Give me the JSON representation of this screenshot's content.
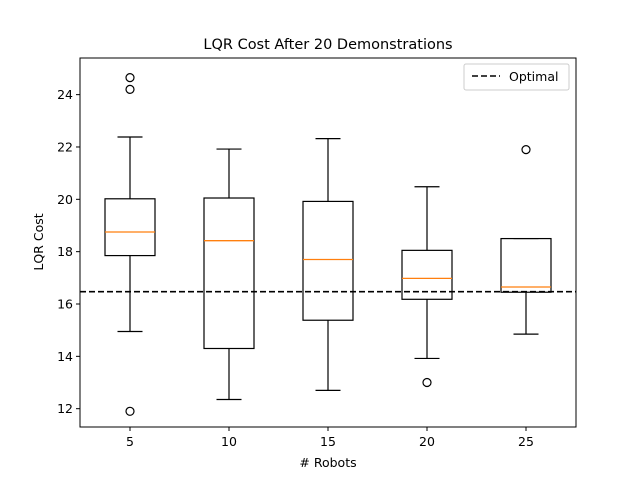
{
  "chart_data": {
    "type": "box",
    "title": "LQR Cost After 20 Demonstrations",
    "xlabel": "# Robots",
    "ylabel": "LQR Cost",
    "categories": [
      "5",
      "10",
      "15",
      "20",
      "25"
    ],
    "ylim": [
      11.3,
      25.4
    ],
    "yticks": [
      "12",
      "14",
      "16",
      "18",
      "20",
      "22",
      "24"
    ],
    "boxes": [
      {
        "category": "5",
        "whisker_low": 14.95,
        "q1": 17.85,
        "median": 18.75,
        "q3": 20.02,
        "whisker_high": 22.38,
        "outliers": [
          11.9,
          24.2,
          24.65
        ]
      },
      {
        "category": "10",
        "whisker_low": 12.35,
        "q1": 14.3,
        "median": 18.42,
        "q3": 20.05,
        "whisker_high": 21.92,
        "outliers": []
      },
      {
        "category": "15",
        "whisker_low": 12.7,
        "q1": 15.38,
        "median": 17.7,
        "q3": 19.92,
        "whisker_high": 22.32,
        "outliers": []
      },
      {
        "category": "20",
        "whisker_low": 13.92,
        "q1": 16.18,
        "median": 16.98,
        "q3": 18.05,
        "whisker_high": 20.48,
        "outliers": [
          13.0
        ]
      },
      {
        "category": "25",
        "whisker_low": 14.85,
        "q1": 16.45,
        "median": 16.65,
        "q3": 18.5,
        "whisker_high": 18.5,
        "outliers": [
          21.9
        ]
      }
    ],
    "reference_line": {
      "label": "Optimal",
      "value": 16.47,
      "style": "dashed"
    },
    "legend": {
      "position": "top-right",
      "entries": [
        "Optimal"
      ]
    },
    "grid": false,
    "colors": {
      "box": "#000000",
      "median": "#ff7f0e",
      "reference": "#000000"
    }
  }
}
